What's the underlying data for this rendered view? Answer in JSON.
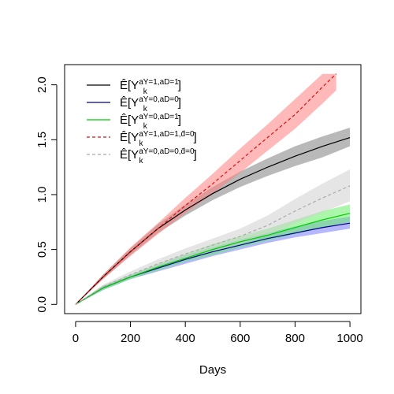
{
  "chart_data": {
    "type": "line",
    "title": "",
    "xlabel": "Days",
    "ylabel": "",
    "xlim": [
      0,
      1000
    ],
    "ylim": [
      0,
      2.1
    ],
    "x_ticks": [
      0,
      200,
      400,
      600,
      800,
      1000
    ],
    "x_tick_labels": [
      "0",
      "200",
      "400",
      "600",
      "800",
      "1000"
    ],
    "y_ticks": [
      0.0,
      0.5,
      1.0,
      1.5,
      2.0
    ],
    "y_tick_labels": [
      "0.0",
      "0.5",
      "1.0",
      "1.5",
      "2.0"
    ],
    "grid": false,
    "legend_position": "top-left",
    "series": [
      {
        "name": "Ê[Y_k^{aY=1,aD=1}]",
        "legend": {
          "main": "Ê[Y",
          "sub": "k",
          "sup": "aY=1,aD=1",
          "close": "]"
        },
        "color": "#000000",
        "band_color": "#808080",
        "dash": "solid",
        "x": [
          0,
          100,
          200,
          300,
          400,
          500,
          600,
          700,
          800,
          900,
          1000
        ],
        "y": [
          0,
          0.25,
          0.48,
          0.69,
          0.86,
          1.01,
          1.14,
          1.25,
          1.35,
          1.44,
          1.52
        ],
        "lower": [
          0,
          0.23,
          0.45,
          0.65,
          0.81,
          0.95,
          1.07,
          1.17,
          1.26,
          1.34,
          1.44
        ],
        "upper": [
          0,
          0.27,
          0.51,
          0.73,
          0.91,
          1.07,
          1.21,
          1.33,
          1.44,
          1.53,
          1.61
        ]
      },
      {
        "name": "Ê[Y_k^{aY=0,aD=0}]",
        "legend": {
          "main": "Ê[Y",
          "sub": "k",
          "sup": "aY=0,aD=0",
          "close": "]"
        },
        "color": "#00008b",
        "band_color": "#7b7bff",
        "dash": "solid",
        "x": [
          0,
          100,
          200,
          300,
          400,
          500,
          600,
          700,
          800,
          900,
          1000
        ],
        "y": [
          0,
          0.15,
          0.25,
          0.33,
          0.41,
          0.48,
          0.54,
          0.6,
          0.65,
          0.7,
          0.74
        ],
        "lower": [
          0,
          0.13,
          0.23,
          0.3,
          0.37,
          0.44,
          0.5,
          0.56,
          0.61,
          0.65,
          0.69
        ],
        "upper": [
          0,
          0.17,
          0.27,
          0.36,
          0.45,
          0.52,
          0.59,
          0.65,
          0.71,
          0.76,
          0.8
        ]
      },
      {
        "name": "Ê[Y_k^{aY=0,aD=1}]",
        "legend": {
          "main": "Ê[Y",
          "sub": "k",
          "sup": "aY=0,aD=1",
          "close": "]"
        },
        "color": "#00cc00",
        "band_color": "#66ee66",
        "dash": "solid",
        "x": [
          0,
          100,
          200,
          300,
          400,
          500,
          600,
          700,
          800,
          900,
          1000
        ],
        "y": [
          0,
          0.15,
          0.25,
          0.34,
          0.42,
          0.5,
          0.57,
          0.63,
          0.7,
          0.77,
          0.83
        ],
        "lower": [
          0,
          0.13,
          0.23,
          0.31,
          0.39,
          0.45,
          0.52,
          0.58,
          0.64,
          0.7,
          0.75
        ],
        "upper": [
          0,
          0.17,
          0.27,
          0.37,
          0.46,
          0.55,
          0.62,
          0.69,
          0.77,
          0.85,
          0.91
        ]
      },
      {
        "name": "Ê[Y_k^{aY=1,aD=1,d̄=0}]",
        "legend": {
          "main": "Ê[Y",
          "sub": "k",
          "sup": "aY=1,aD=1,d̄=0",
          "close": "]"
        },
        "color": "#dd1111",
        "band_color": "#ff8080",
        "dash": "dashed",
        "x": [
          0,
          100,
          200,
          300,
          400,
          500,
          600,
          700,
          800,
          900,
          950
        ],
        "y": [
          0,
          0.25,
          0.48,
          0.69,
          0.9,
          1.1,
          1.31,
          1.52,
          1.73,
          1.98,
          2.1
        ],
        "lower": [
          0,
          0.23,
          0.44,
          0.64,
          0.83,
          1.01,
          1.2,
          1.4,
          1.6,
          1.83,
          1.95
        ],
        "upper": [
          0,
          0.27,
          0.52,
          0.74,
          0.97,
          1.19,
          1.42,
          1.64,
          1.87,
          2.1,
          2.1
        ]
      },
      {
        "name": "Ê[Y_k^{aY=0,aD=0,d̄=0}]",
        "legend": {
          "main": "Ê[Y",
          "sub": "k",
          "sup": "aY=0,aD=0,d̄=0",
          "close": "]"
        },
        "color": "#aaaaaa",
        "band_color": "#cfcfcf",
        "dash": "dashed",
        "x": [
          0,
          100,
          200,
          300,
          400,
          500,
          600,
          700,
          800,
          900,
          1000
        ],
        "y": [
          0,
          0.16,
          0.27,
          0.37,
          0.46,
          0.54,
          0.62,
          0.72,
          0.85,
          0.97,
          1.08
        ],
        "lower": [
          0,
          0.14,
          0.24,
          0.33,
          0.41,
          0.48,
          0.55,
          0.63,
          0.74,
          0.84,
          0.94
        ],
        "upper": [
          0,
          0.18,
          0.3,
          0.41,
          0.51,
          0.6,
          0.69,
          0.81,
          0.96,
          1.1,
          1.23
        ]
      }
    ]
  }
}
